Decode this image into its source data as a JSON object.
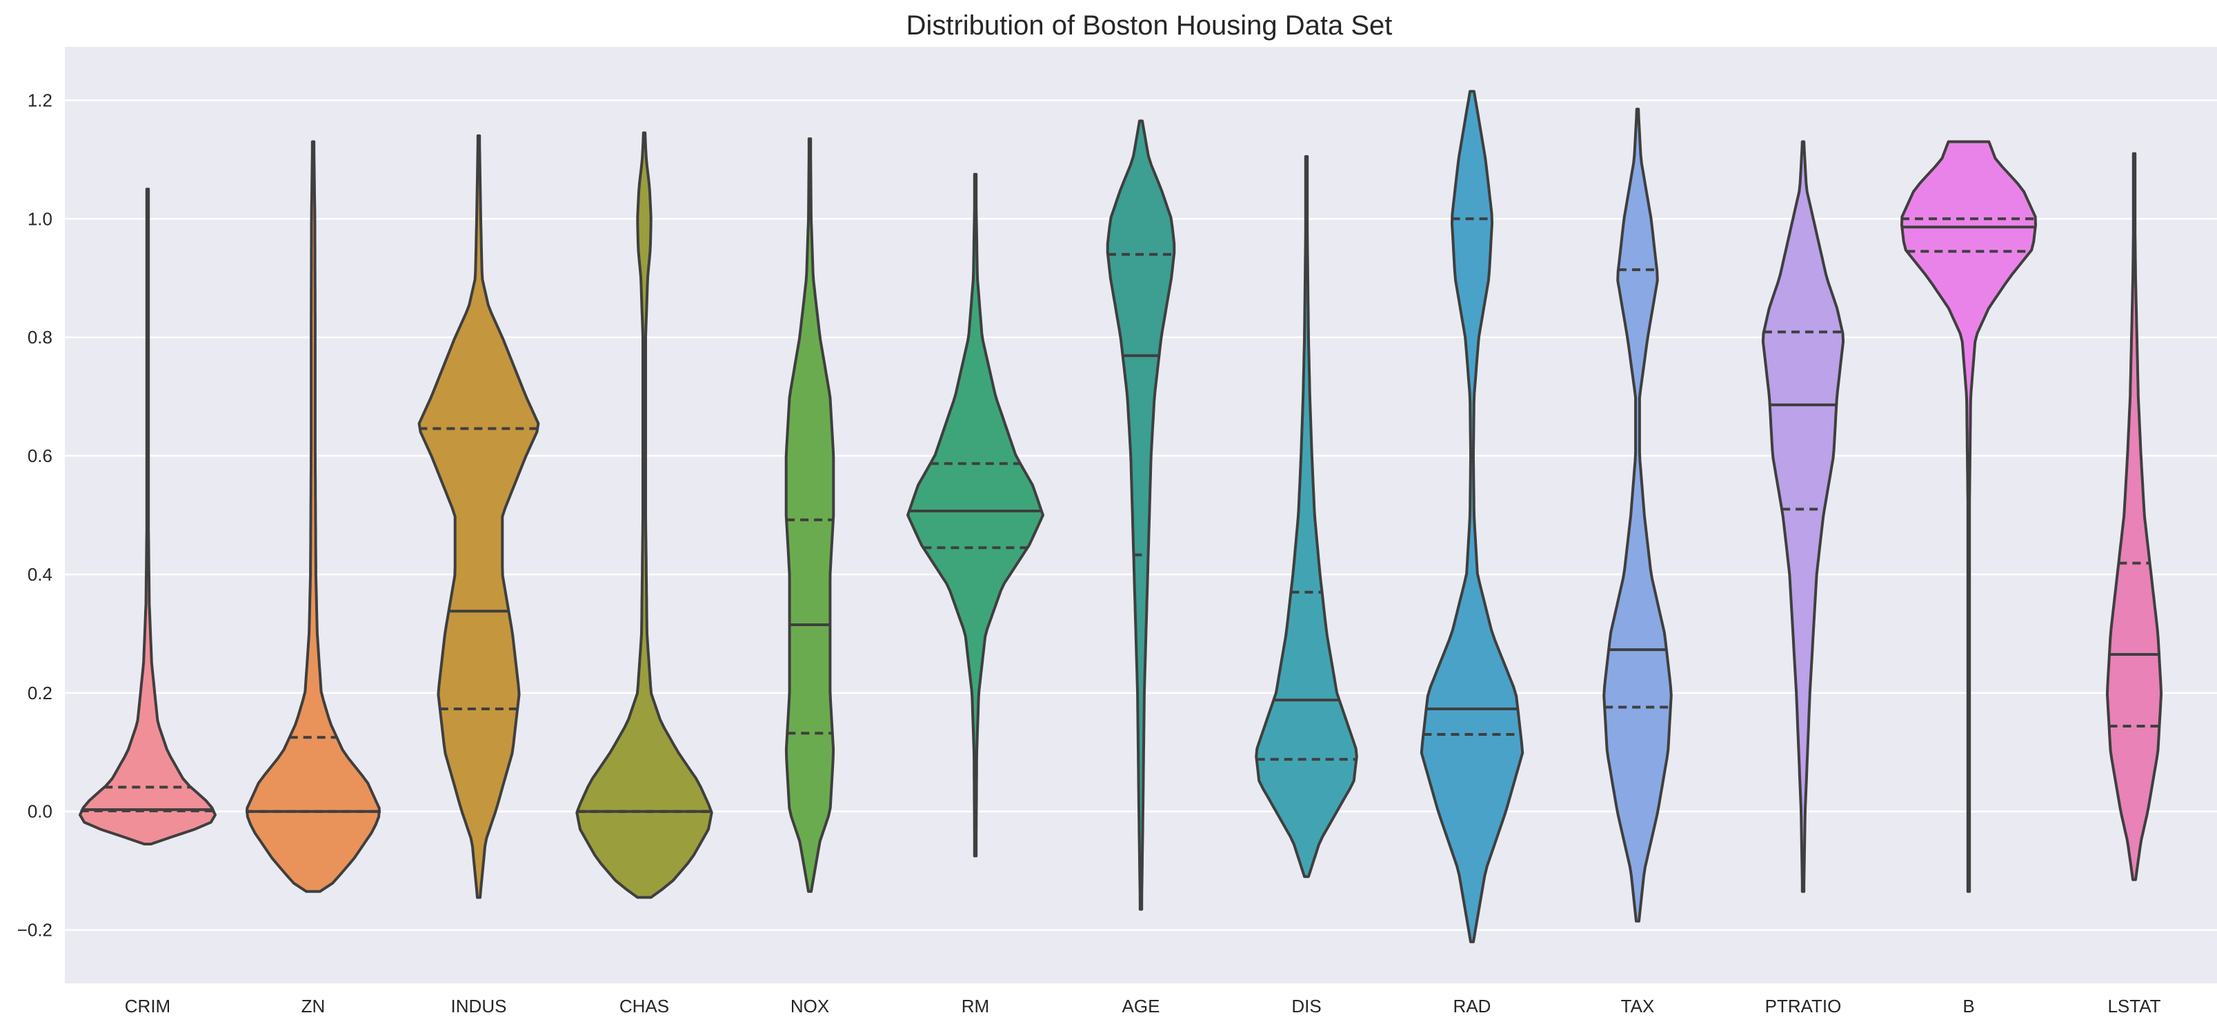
{
  "chart_data": {
    "type": "violin",
    "title": "Distribution of Boston Housing Data Set",
    "xlabel": "",
    "ylabel": "",
    "ylim": [
      -0.29,
      1.29
    ],
    "yticks": [
      -0.2,
      0.0,
      0.2,
      0.4,
      0.6,
      0.8,
      1.0,
      1.2
    ],
    "ytick_labels": [
      "−0.2",
      "0.0",
      "0.2",
      "0.4",
      "0.6",
      "0.8",
      "1.0",
      "1.2"
    ],
    "grid": true,
    "background_color": "#eaeaf2",
    "inner": "quartile",
    "categories": [
      "CRIM",
      "ZN",
      "INDUS",
      "CHAS",
      "NOX",
      "RM",
      "AGE",
      "DIS",
      "RAD",
      "TAX",
      "PTRATIO",
      "B",
      "LSTAT"
    ],
    "series": [
      {
        "color": "#f08f98",
        "ymin": -0.055,
        "ymax": 1.05,
        "q1": 0.001,
        "median": 0.003,
        "q3": 0.041,
        "profile": [
          [
            -0.055,
            0.05
          ],
          [
            -0.045,
            0.3
          ],
          [
            -0.03,
            0.7
          ],
          [
            -0.015,
            1.0
          ],
          [
            0.0,
            1.0
          ],
          [
            0.02,
            0.85
          ],
          [
            0.05,
            0.55
          ],
          [
            0.1,
            0.3
          ],
          [
            0.15,
            0.15
          ],
          [
            0.25,
            0.06
          ],
          [
            0.35,
            0.025
          ],
          [
            0.5,
            0.01
          ],
          [
            0.7,
            0.007
          ],
          [
            1.05,
            0.005
          ]
        ]
      },
      {
        "color": "#e9935a",
        "ymin": -0.135,
        "ymax": 1.13,
        "q1": 0.0,
        "median": 0.0,
        "q3": 0.125,
        "profile": [
          [
            -0.135,
            0.1
          ],
          [
            -0.12,
            0.3
          ],
          [
            -0.08,
            0.6
          ],
          [
            -0.03,
            0.9
          ],
          [
            0.0,
            1.0
          ],
          [
            0.05,
            0.8
          ],
          [
            0.1,
            0.45
          ],
          [
            0.15,
            0.25
          ],
          [
            0.2,
            0.12
          ],
          [
            0.3,
            0.06
          ],
          [
            0.4,
            0.04
          ],
          [
            0.6,
            0.03
          ],
          [
            0.8,
            0.03
          ],
          [
            1.0,
            0.025
          ],
          [
            1.13,
            0.01
          ]
        ]
      },
      {
        "color": "#c4963e",
        "ymin": -0.145,
        "ymax": 1.14,
        "q1": 0.173,
        "median": 0.338,
        "q3": 0.646,
        "profile": [
          [
            -0.145,
            0.02
          ],
          [
            -0.05,
            0.1
          ],
          [
            0.0,
            0.25
          ],
          [
            0.1,
            0.5
          ],
          [
            0.2,
            0.6
          ],
          [
            0.3,
            0.5
          ],
          [
            0.4,
            0.35
          ],
          [
            0.5,
            0.35
          ],
          [
            0.6,
            0.7
          ],
          [
            0.65,
            0.9
          ],
          [
            0.7,
            0.7
          ],
          [
            0.8,
            0.35
          ],
          [
            0.85,
            0.15
          ],
          [
            0.9,
            0.05
          ],
          [
            1.0,
            0.03
          ],
          [
            1.14,
            0.01
          ]
        ]
      },
      {
        "color": "#9b9e3c",
        "ymin": -0.145,
        "ymax": 1.145,
        "q1": 0.0,
        "median": 0.0,
        "q3": 0.0,
        "profile": [
          [
            -0.145,
            0.1
          ],
          [
            -0.12,
            0.4
          ],
          [
            -0.08,
            0.7
          ],
          [
            -0.03,
            0.95
          ],
          [
            0.0,
            1.0
          ],
          [
            0.05,
            0.8
          ],
          [
            0.1,
            0.5
          ],
          [
            0.15,
            0.25
          ],
          [
            0.2,
            0.1
          ],
          [
            0.3,
            0.04
          ],
          [
            0.5,
            0.02
          ],
          [
            0.8,
            0.02
          ],
          [
            0.9,
            0.05
          ],
          [
            0.95,
            0.09
          ],
          [
            1.0,
            0.1
          ],
          [
            1.05,
            0.08
          ],
          [
            1.1,
            0.03
          ],
          [
            1.145,
            0.01
          ]
        ]
      },
      {
        "color": "#6bab4f",
        "ymin": -0.135,
        "ymax": 1.135,
        "q1": 0.132,
        "median": 0.315,
        "q3": 0.492,
        "profile": [
          [
            -0.135,
            0.02
          ],
          [
            -0.05,
            0.15
          ],
          [
            0.0,
            0.3
          ],
          [
            0.1,
            0.35
          ],
          [
            0.2,
            0.3
          ],
          [
            0.3,
            0.3
          ],
          [
            0.4,
            0.3
          ],
          [
            0.5,
            0.35
          ],
          [
            0.6,
            0.35
          ],
          [
            0.7,
            0.3
          ],
          [
            0.8,
            0.15
          ],
          [
            0.9,
            0.05
          ],
          [
            1.0,
            0.02
          ],
          [
            1.135,
            0.01
          ]
        ]
      },
      {
        "color": "#3ea57a",
        "ymin": -0.075,
        "ymax": 1.075,
        "q1": 0.445,
        "median": 0.507,
        "q3": 0.587,
        "profile": [
          [
            -0.075,
            0.01
          ],
          [
            0.1,
            0.02
          ],
          [
            0.2,
            0.05
          ],
          [
            0.3,
            0.15
          ],
          [
            0.38,
            0.4
          ],
          [
            0.45,
            0.8
          ],
          [
            0.5,
            1.0
          ],
          [
            0.55,
            0.85
          ],
          [
            0.6,
            0.6
          ],
          [
            0.7,
            0.3
          ],
          [
            0.8,
            0.1
          ],
          [
            0.9,
            0.03
          ],
          [
            1.0,
            0.015
          ],
          [
            1.075,
            0.005
          ]
        ]
      },
      {
        "color": "#3d9e92",
        "ymin": -0.165,
        "ymax": 1.165,
        "q1": 0.433,
        "median": 0.769,
        "q3": 0.94,
        "profile": [
          [
            -0.165,
            0.01
          ],
          [
            0.0,
            0.03
          ],
          [
            0.2,
            0.05
          ],
          [
            0.4,
            0.1
          ],
          [
            0.6,
            0.15
          ],
          [
            0.7,
            0.2
          ],
          [
            0.8,
            0.3
          ],
          [
            0.9,
            0.45
          ],
          [
            0.95,
            0.5
          ],
          [
            1.0,
            0.45
          ],
          [
            1.05,
            0.3
          ],
          [
            1.1,
            0.12
          ],
          [
            1.165,
            0.02
          ]
        ]
      },
      {
        "color": "#42a4b2",
        "ymin": -0.11,
        "ymax": 1.105,
        "q1": 0.088,
        "median": 0.188,
        "q3": 0.37,
        "profile": [
          [
            -0.11,
            0.03
          ],
          [
            -0.05,
            0.2
          ],
          [
            0.0,
            0.45
          ],
          [
            0.05,
            0.7
          ],
          [
            0.1,
            0.75
          ],
          [
            0.15,
            0.6
          ],
          [
            0.2,
            0.45
          ],
          [
            0.3,
            0.3
          ],
          [
            0.4,
            0.2
          ],
          [
            0.5,
            0.12
          ],
          [
            0.6,
            0.08
          ],
          [
            0.7,
            0.05
          ],
          [
            0.8,
            0.03
          ],
          [
            1.0,
            0.01
          ],
          [
            1.105,
            0.005
          ]
        ]
      },
      {
        "color": "#4aa2c9",
        "ymin": -0.22,
        "ymax": 1.215,
        "q1": 0.13,
        "median": 0.173,
        "q3": 1.0,
        "profile": [
          [
            -0.22,
            0.02
          ],
          [
            -0.1,
            0.2
          ],
          [
            0.0,
            0.5
          ],
          [
            0.1,
            0.75
          ],
          [
            0.2,
            0.65
          ],
          [
            0.3,
            0.3
          ],
          [
            0.4,
            0.08
          ],
          [
            0.5,
            0.03
          ],
          [
            0.6,
            0.02
          ],
          [
            0.7,
            0.03
          ],
          [
            0.8,
            0.1
          ],
          [
            0.9,
            0.25
          ],
          [
            1.0,
            0.3
          ],
          [
            1.1,
            0.2
          ],
          [
            1.215,
            0.03
          ]
        ]
      },
      {
        "color": "#8aa8e3",
        "ymin": -0.185,
        "ymax": 1.185,
        "q1": 0.176,
        "median": 0.273,
        "q3": 0.914,
        "profile": [
          [
            -0.185,
            0.02
          ],
          [
            -0.1,
            0.1
          ],
          [
            0.0,
            0.3
          ],
          [
            0.1,
            0.45
          ],
          [
            0.2,
            0.5
          ],
          [
            0.3,
            0.4
          ],
          [
            0.4,
            0.2
          ],
          [
            0.5,
            0.1
          ],
          [
            0.6,
            0.03
          ],
          [
            0.7,
            0.03
          ],
          [
            0.8,
            0.15
          ],
          [
            0.9,
            0.3
          ],
          [
            1.0,
            0.2
          ],
          [
            1.1,
            0.05
          ],
          [
            1.185,
            0.01
          ]
        ]
      },
      {
        "color": "#bba2e9",
        "ymin": -0.135,
        "ymax": 1.13,
        "q1": 0.51,
        "median": 0.686,
        "q3": 0.809,
        "profile": [
          [
            -0.135,
            0.01
          ],
          [
            0.0,
            0.03
          ],
          [
            0.2,
            0.1
          ],
          [
            0.4,
            0.2
          ],
          [
            0.5,
            0.3
          ],
          [
            0.6,
            0.45
          ],
          [
            0.7,
            0.5
          ],
          [
            0.8,
            0.6
          ],
          [
            0.85,
            0.5
          ],
          [
            0.9,
            0.35
          ],
          [
            1.0,
            0.15
          ],
          [
            1.05,
            0.05
          ],
          [
            1.13,
            0.01
          ]
        ]
      },
      {
        "color": "#ea83e9",
        "ymin": -0.135,
        "ymax": 1.13,
        "q1": 0.945,
        "median": 0.986,
        "q3": 1.0,
        "profile": [
          [
            -0.135,
            0.01
          ],
          [
            0.5,
            0.01
          ],
          [
            0.7,
            0.03
          ],
          [
            0.8,
            0.1
          ],
          [
            0.85,
            0.3
          ],
          [
            0.9,
            0.6
          ],
          [
            0.95,
            0.95
          ],
          [
            1.0,
            1.0
          ],
          [
            1.05,
            0.8
          ],
          [
            1.1,
            0.4
          ],
          [
            1.13,
            0.3
          ]
        ]
      },
      {
        "color": "#e882b7",
        "ymin": -0.115,
        "ymax": 1.11,
        "q1": 0.144,
        "median": 0.265,
        "q3": 0.419,
        "profile": [
          [
            -0.115,
            0.02
          ],
          [
            -0.05,
            0.1
          ],
          [
            0.0,
            0.2
          ],
          [
            0.1,
            0.35
          ],
          [
            0.2,
            0.4
          ],
          [
            0.3,
            0.35
          ],
          [
            0.4,
            0.25
          ],
          [
            0.5,
            0.15
          ],
          [
            0.6,
            0.1
          ],
          [
            0.7,
            0.06
          ],
          [
            0.8,
            0.04
          ],
          [
            0.9,
            0.02
          ],
          [
            1.0,
            0.01
          ],
          [
            1.11,
            0.005
          ]
        ]
      }
    ]
  }
}
